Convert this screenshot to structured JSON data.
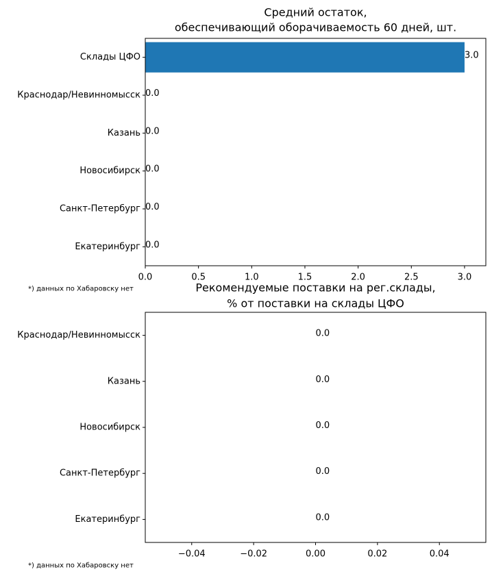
{
  "chart_data": [
    {
      "type": "bar",
      "orientation": "horizontal",
      "title_lines": [
        "Средний остаток,",
        "обеспечивающий оборачиваемость 60 дней, шт."
      ],
      "categories": [
        "Склады ЦФО",
        "Краснодар/Невинномысск",
        "Казань",
        "Новосибирск",
        "Санкт-Петербург",
        "Екатеринбург"
      ],
      "values": [
        3.0,
        0.0,
        0.0,
        0.0,
        0.0,
        0.0
      ],
      "data_labels": [
        "3.0",
        "0.0",
        "0.0",
        "0.0",
        "0.0",
        "0.0"
      ],
      "xlim": [
        0,
        3.2
      ],
      "xticks": [
        0.0,
        0.5,
        1.0,
        1.5,
        2.0,
        2.5,
        3.0
      ],
      "xtick_labels": [
        "0.0",
        "0.5",
        "1.0",
        "1.5",
        "2.0",
        "2.5",
        "3.0"
      ],
      "bar_color": "#1f77b4",
      "grid": false,
      "footnote": "*) данных по Хабаровску нет"
    },
    {
      "type": "bar",
      "orientation": "horizontal",
      "title_lines": [
        "Рекомендуемые поставки на рег.склады,",
        "% от поставки на склады ЦФО"
      ],
      "categories": [
        "Краснодар/Невинномысск",
        "Казань",
        "Новосибирск",
        "Санкт-Петербург",
        "Екатеринбург"
      ],
      "values": [
        0.0,
        0.0,
        0.0,
        0.0,
        0.0
      ],
      "data_labels": [
        "0.0",
        "0.0",
        "0.0",
        "0.0",
        "0.0"
      ],
      "xlim": [
        -0.055,
        0.055
      ],
      "xticks": [
        -0.04,
        -0.02,
        0.0,
        0.02,
        0.04
      ],
      "xtick_labels": [
        "−0.04",
        "−0.02",
        "0.00",
        "0.02",
        "0.04"
      ],
      "bar_color": "#1f77b4",
      "grid": false,
      "footnote": "*) данных по Хабаровску нет"
    }
  ]
}
